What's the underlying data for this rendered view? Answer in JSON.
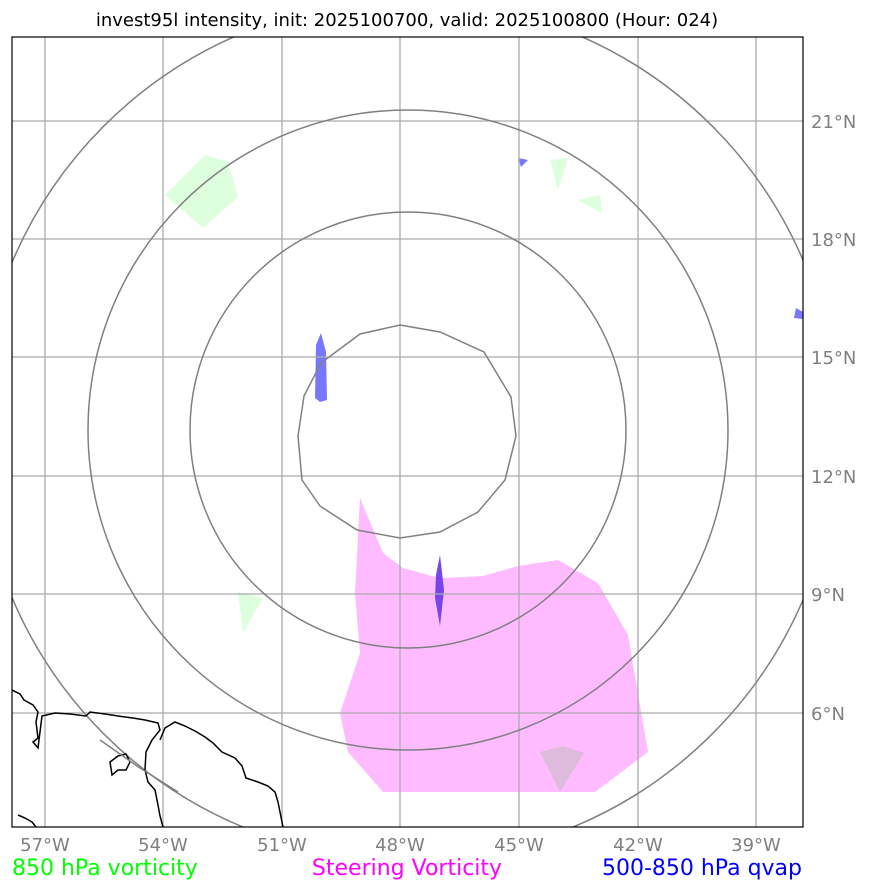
{
  "title": "invest95l intensity, init: 2025100700, valid: 2025100800 (Hour: 024)",
  "axes": {
    "longitude_labels": [
      "57°W",
      "54°W",
      "51°W",
      "48°W",
      "45°W",
      "42°W",
      "39°W"
    ],
    "latitude_labels": [
      "21°N",
      "18°N",
      "15°N",
      "12°N",
      "9°N",
      "6°N"
    ]
  },
  "legend": {
    "vorticity_850": {
      "label": "850 hPa vorticity",
      "color": "#00ff00"
    },
    "steering_vorticity": {
      "label": "Steering Vorticity",
      "color": "#ff00ff"
    },
    "qvap": {
      "label": "500-850 hPa qvap",
      "color": "#0000ff"
    }
  },
  "layers": {
    "range_rings": {
      "color": "#808080",
      "count": 4
    },
    "gridlines": {
      "color": "#aaaaaa"
    },
    "coastline": {
      "color": "#000000"
    },
    "fills": {
      "vorticity_850": "#ddffdd",
      "steering_vorticity": "#ffbbff",
      "qvap": "#7777ff",
      "qvap_overlap": "#7744ee",
      "overlap_grey": "#ddbbdd"
    }
  }
}
